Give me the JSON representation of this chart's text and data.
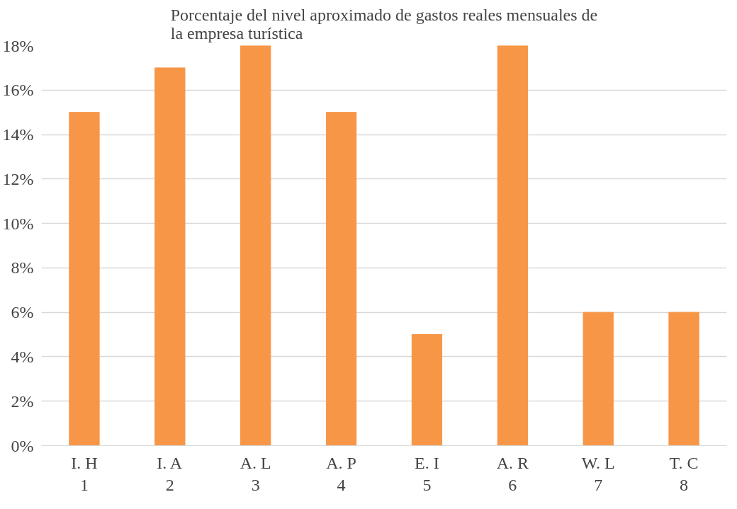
{
  "chart_data": {
    "type": "bar",
    "title": "Porcentaje del nivel aproximado de gastos reales mensuales de la empresa turística",
    "categories": [
      "I. H\n1",
      "I. A\n2",
      "A. L\n3",
      "A. P\n4",
      "E. I\n5",
      "A. R\n6",
      "W. L\n7",
      "T. C\n8"
    ],
    "values": [
      15,
      17,
      18,
      15,
      5,
      18,
      6,
      6
    ],
    "color": "#f79646",
    "ylim": [
      0,
      18
    ],
    "yticks": [
      {
        "value": 0,
        "label": "0%"
      },
      {
        "value": 2,
        "label": "2%"
      },
      {
        "value": 4,
        "label": "4%"
      },
      {
        "value": 6,
        "label": "6%"
      },
      {
        "value": 8,
        "label": "8%"
      },
      {
        "value": 10,
        "label": "10%"
      },
      {
        "value": 12,
        "label": "12%"
      },
      {
        "value": 14,
        "label": "14%"
      },
      {
        "value": 16,
        "label": "16%"
      },
      {
        "value": 18,
        "label": "18%"
      }
    ],
    "grid": "y"
  }
}
